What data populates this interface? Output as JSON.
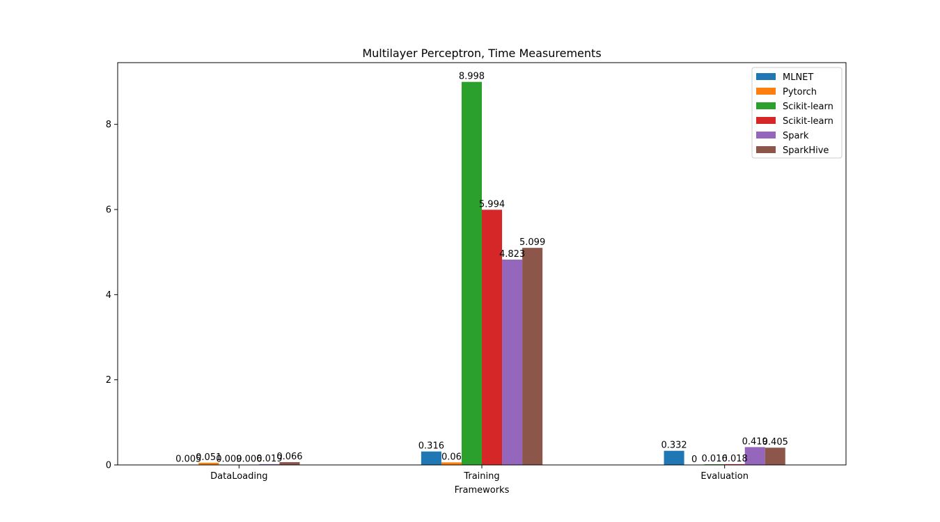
{
  "chart_data": {
    "type": "bar",
    "title": "Multilayer Perceptron, Time Measurements",
    "xlabel": "Frameworks",
    "ylabel": "",
    "categories": [
      "DataLoading",
      "Training",
      "Evaluation"
    ],
    "ylim": [
      0,
      9.45
    ],
    "yticks": [
      "0",
      "2",
      "4",
      "6",
      "8"
    ],
    "legend_position": "top-right",
    "grid": false,
    "series": [
      {
        "name": "MLNET",
        "color": "#1f77b4",
        "values": [
          0.005,
          0.316,
          0.332
        ],
        "labels": [
          "0.005",
          "0.316",
          "0.332"
        ]
      },
      {
        "name": "Pytorch",
        "color": "#ff7f0e",
        "values": [
          0.051,
          0.06,
          0
        ],
        "labels": [
          "0.051",
          "0.06",
          "0"
        ]
      },
      {
        "name": "Scikit-learn",
        "color": "#2ca02c",
        "values": [
          0.009,
          8.998,
          0.016
        ],
        "labels": [
          "0.009",
          "8.998",
          "0.016"
        ]
      },
      {
        "name": "Scikit-learn",
        "color": "#d62728",
        "values": [
          0.006,
          5.994,
          0.018
        ],
        "labels": [
          "0.006",
          "5.994",
          "0.018"
        ]
      },
      {
        "name": "Spark",
        "color": "#9467bd",
        "values": [
          0.019,
          4.823,
          0.419
        ],
        "labels": [
          "0.019",
          "4.823",
          "0.419"
        ]
      },
      {
        "name": "SparkHive",
        "color": "#8c564b",
        "values": [
          0.066,
          5.099,
          0.405
        ],
        "labels": [
          "0.066",
          "5.099",
          "0.405"
        ]
      }
    ]
  }
}
